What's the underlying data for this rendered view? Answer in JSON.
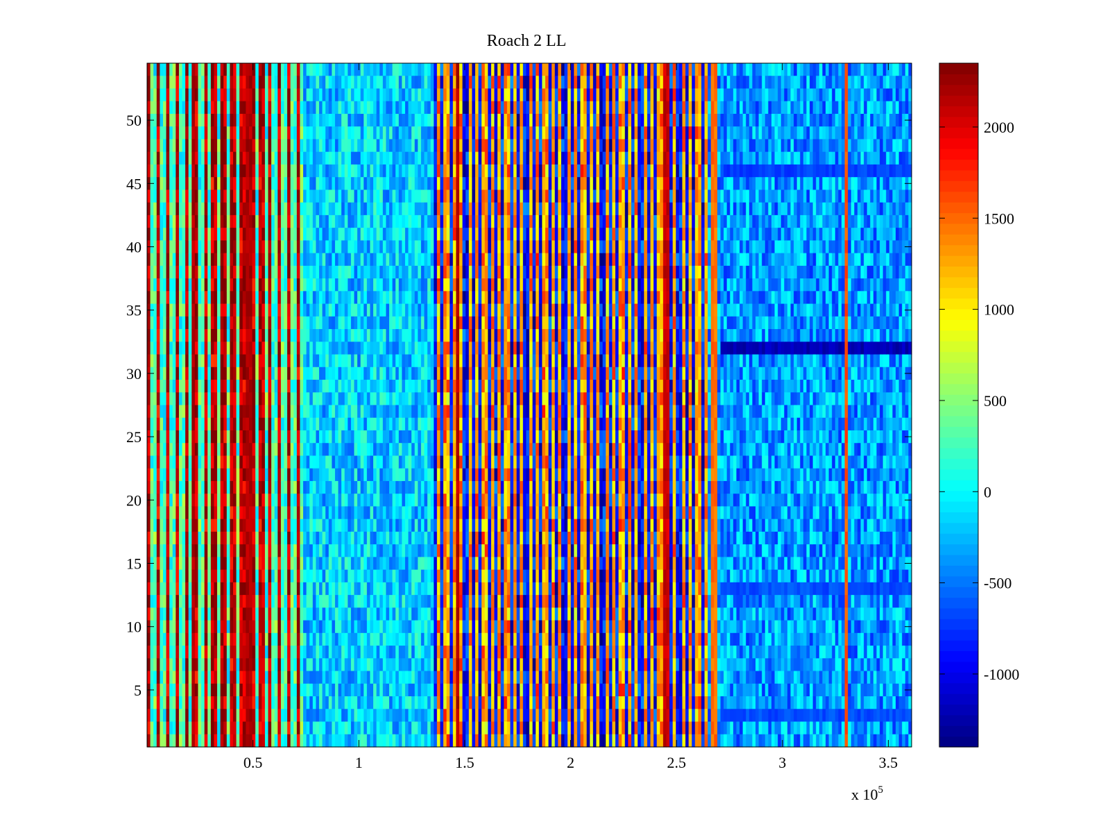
{
  "chart_data": {
    "type": "heatmap",
    "title": "Roach 2 LL",
    "xlabel": "",
    "ylabel": "",
    "x_multiplier_label": "x 10",
    "x_multiplier_exponent": "5",
    "xlim": [
      0,
      3.61
    ],
    "ylim": [
      0.5,
      54.5
    ],
    "x_ticks": [
      0.5,
      1,
      1.5,
      2,
      2.5,
      3,
      3.5
    ],
    "x_tick_labels": [
      "0.5",
      "1",
      "1.5",
      "2",
      "2.5",
      "3",
      "3.5"
    ],
    "y_ticks": [
      5,
      10,
      15,
      20,
      25,
      30,
      35,
      40,
      45,
      50
    ],
    "y_tick_labels": [
      "5",
      "10",
      "15",
      "20",
      "25",
      "30",
      "35",
      "40",
      "45",
      "50"
    ],
    "rows": 54,
    "colormap": "jet",
    "colorbar": {
      "min": -1400,
      "max": 2350,
      "ticks": [
        -1000,
        -500,
        0,
        500,
        1000,
        1500,
        2000
      ],
      "tick_labels": [
        "-1000",
        "-500",
        "0",
        "500",
        "1000",
        "1500",
        "2000"
      ]
    },
    "regions": [
      {
        "x_start": 0.0,
        "x_end": 0.73,
        "mean": 1200,
        "spread": 1300,
        "stripe_period": 0.022
      },
      {
        "x_start": 0.73,
        "x_end": 1.35,
        "mean": -150,
        "spread": 420,
        "stripe_period": 0
      },
      {
        "x_start": 1.35,
        "x_end": 2.64,
        "mean": 200,
        "spread": 1500,
        "stripe_period": 0.018
      },
      {
        "x_start": 2.64,
        "x_end": 3.61,
        "mean": -350,
        "spread": 420,
        "stripe_period": 0
      }
    ],
    "hot_columns": [
      {
        "x": 0.215,
        "value": 2300
      },
      {
        "x": 0.48,
        "value": 2300
      },
      {
        "x": 1.465,
        "value": 2300
      },
      {
        "x": 2.45,
        "value": 2200
      },
      {
        "x": 2.68,
        "value": 1600
      },
      {
        "x": 3.3,
        "value": 1700
      }
    ],
    "low_rows": [
      {
        "y": 32,
        "x_start": 2.7,
        "x_end": 3.61,
        "value": -1200
      },
      {
        "y": 46,
        "x_start": 2.7,
        "x_end": 3.61,
        "value": -700
      },
      {
        "y": 13,
        "x_start": 2.7,
        "x_end": 3.61,
        "value": -650
      },
      {
        "y": 3,
        "x_start": 2.7,
        "x_end": 3.61,
        "value": -650
      }
    ]
  },
  "colors": {
    "jet_low": "#00007f",
    "jet_high": "#7f0000",
    "axis": "#000000",
    "background": "#ffffff"
  }
}
